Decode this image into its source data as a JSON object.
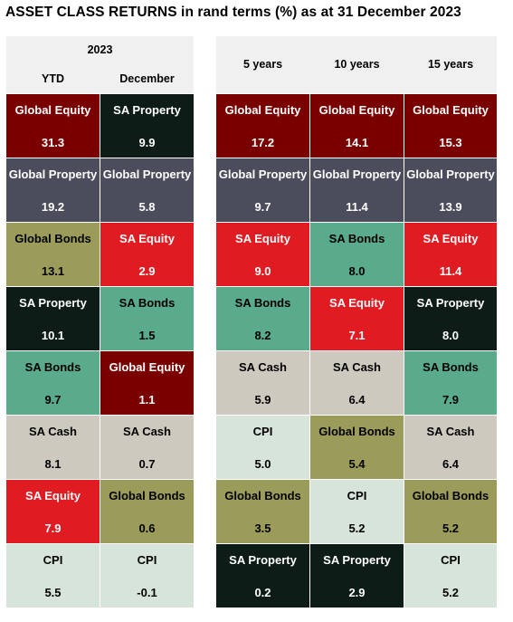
{
  "title": "ASSET CLASS RETURNS in rand terms (%) as at 31 December 2023",
  "colors": {
    "Global Equity": "#7a0000",
    "SA Property": "#0d1c17",
    "Global Property": "#4b4d5c",
    "Global Bonds": "#9c9c5a",
    "SA Equity": "#e11b22",
    "SA Bonds": "#5aaa8c",
    "SA Cash": "#cdc9bf",
    "CPI": "#d7e4d9"
  },
  "dark_text_classes": [
    "Global Equity",
    "SA Property",
    "Global Property",
    "SA Equity"
  ],
  "left_panel": {
    "group_header": "2023",
    "columns": [
      "YTD",
      "December"
    ]
  },
  "right_panel": {
    "columns": [
      "5 years",
      "10 years",
      "15 years"
    ]
  },
  "chart_data": {
    "type": "table",
    "title": "ASSET CLASS RETURNS in rand terms (%) as at 31 December 2023",
    "columns": [
      {
        "name": "YTD",
        "group": "2023",
        "ranked": [
          {
            "asset": "Global Equity",
            "value": "31.3"
          },
          {
            "asset": "Global Property",
            "value": "19.2"
          },
          {
            "asset": "Global Bonds",
            "value": "13.1"
          },
          {
            "asset": "SA Property",
            "value": "10.1"
          },
          {
            "asset": "SA Bonds",
            "value": "9.7"
          },
          {
            "asset": "SA Cash",
            "value": "8.1"
          },
          {
            "asset": "SA Equity",
            "value": "7.9"
          },
          {
            "asset": "CPI",
            "value": "5.5"
          }
        ]
      },
      {
        "name": "December",
        "group": "2023",
        "ranked": [
          {
            "asset": "SA Property",
            "value": "9.9"
          },
          {
            "asset": "Global Property",
            "value": "5.8"
          },
          {
            "asset": "SA Equity",
            "value": "2.9"
          },
          {
            "asset": "SA Bonds",
            "value": "1.5"
          },
          {
            "asset": "Global Equity",
            "value": "1.1"
          },
          {
            "asset": "SA Cash",
            "value": "0.7"
          },
          {
            "asset": "Global Bonds",
            "value": "0.6"
          },
          {
            "asset": "CPI",
            "value": "-0.1"
          }
        ]
      },
      {
        "name": "5 years",
        "ranked": [
          {
            "asset": "Global Equity",
            "value": "17.2"
          },
          {
            "asset": "Global Property",
            "value": "9.7"
          },
          {
            "asset": "SA Equity",
            "value": "9.0"
          },
          {
            "asset": "SA Bonds",
            "value": "8.2"
          },
          {
            "asset": "SA Cash",
            "value": "5.9"
          },
          {
            "asset": "CPI",
            "value": "5.0"
          },
          {
            "asset": "Global Bonds",
            "value": "3.5"
          },
          {
            "asset": "SA Property",
            "value": "0.2"
          }
        ]
      },
      {
        "name": "10 years",
        "ranked": [
          {
            "asset": "Global Equity",
            "value": "14.1"
          },
          {
            "asset": "Global Property",
            "value": "11.4"
          },
          {
            "asset": "SA Bonds",
            "value": "8.0"
          },
          {
            "asset": "SA Equity",
            "value": "7.1"
          },
          {
            "asset": "SA Cash",
            "value": "6.4"
          },
          {
            "asset": "Global Bonds",
            "value": "5.4"
          },
          {
            "asset": "CPI",
            "value": "5.2"
          },
          {
            "asset": "SA Property",
            "value": "2.9"
          }
        ]
      },
      {
        "name": "15 years",
        "ranked": [
          {
            "asset": "Global Equity",
            "value": "15.3"
          },
          {
            "asset": "Global Property",
            "value": "13.9"
          },
          {
            "asset": "SA Equity",
            "value": "11.4"
          },
          {
            "asset": "SA Property",
            "value": "8.0"
          },
          {
            "asset": "SA Bonds",
            "value": "7.9"
          },
          {
            "asset": "SA Cash",
            "value": "6.4"
          },
          {
            "asset": "Global Bonds",
            "value": "5.2"
          },
          {
            "asset": "CPI",
            "value": "5.2"
          }
        ]
      }
    ]
  }
}
